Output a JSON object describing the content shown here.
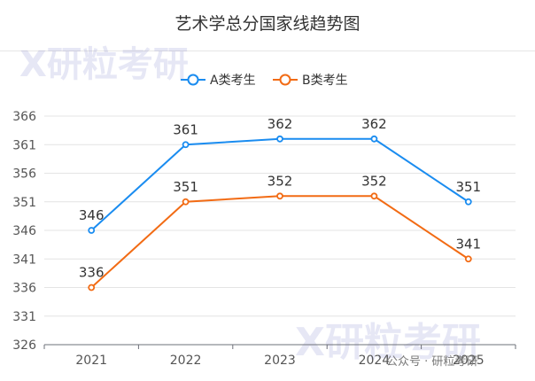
{
  "title": "艺术学总分国家线趋势图",
  "watermark": {
    "text": "研粒考研",
    "mark": "X"
  },
  "footer_text": "公众号 · 研粒考研",
  "chart_data": {
    "type": "line",
    "title": "艺术学总分国家线趋势图",
    "categories": [
      "2021",
      "2022",
      "2023",
      "2024",
      "2025"
    ],
    "series": [
      {
        "name": "A类考生",
        "color": "#1a8cf0",
        "values": [
          346,
          361,
          362,
          362,
          351
        ]
      },
      {
        "name": "B类考生",
        "color": "#f26b14",
        "values": [
          336,
          351,
          352,
          352,
          341
        ]
      }
    ],
    "ylim": [
      326,
      366
    ],
    "yticks": [
      326,
      331,
      336,
      341,
      346,
      351,
      356,
      361,
      366
    ],
    "grid": true,
    "legend": "top-center",
    "data_labels": true
  }
}
